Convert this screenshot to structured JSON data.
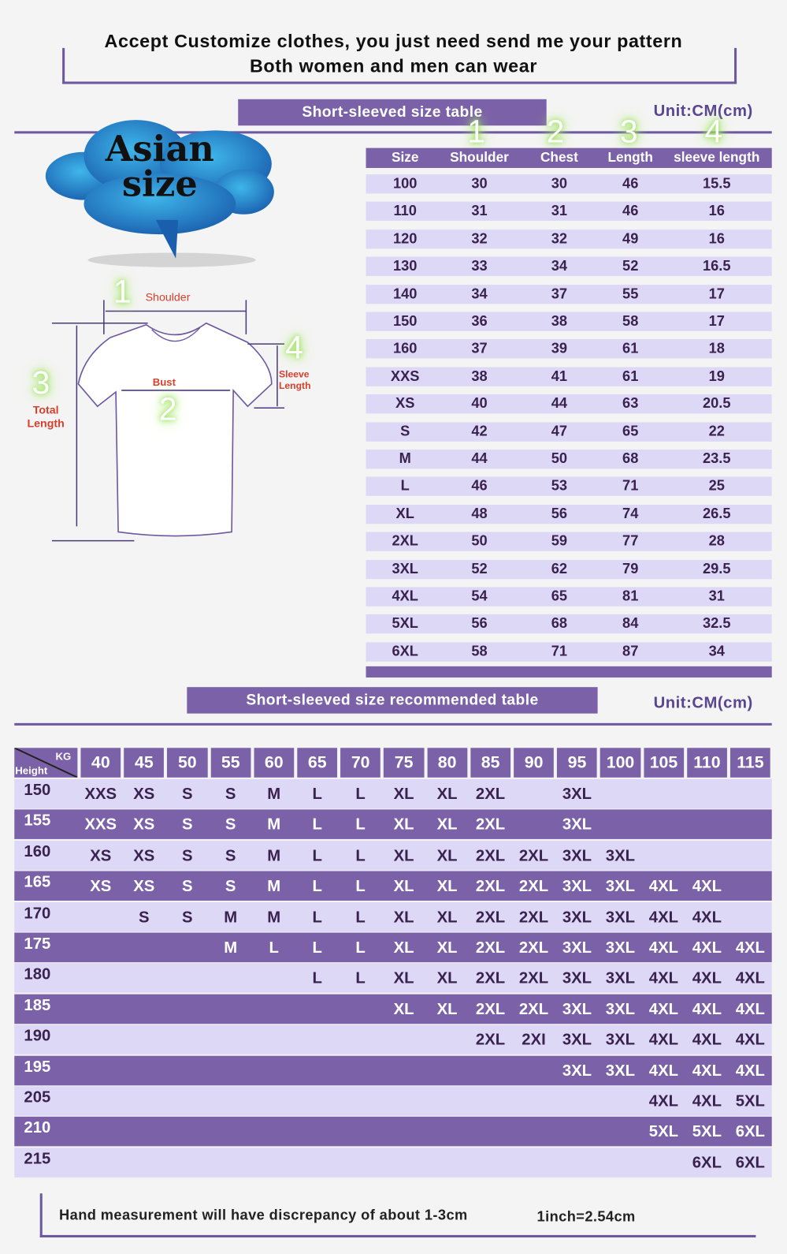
{
  "header": {
    "line1": "Accept Customize clothes, you just need send me your pattern",
    "line2": "Both women and men can wear"
  },
  "size_table": {
    "banner": "Short-sleeved size  table",
    "unit": "Unit:CM(cm)",
    "badge": "Asian size",
    "badge_line1": "Asian",
    "badge_line2": "size",
    "markers": [
      "1",
      "2",
      "3",
      "4"
    ],
    "columns": [
      "Size",
      "Shoulder",
      "Chest",
      "Length",
      "sleeve length"
    ],
    "rows": [
      [
        "100",
        "30",
        "30",
        "46",
        "15.5"
      ],
      [
        "110",
        "31",
        "31",
        "46",
        "16"
      ],
      [
        "120",
        "32",
        "32",
        "49",
        "16"
      ],
      [
        "130",
        "33",
        "34",
        "52",
        "16.5"
      ],
      [
        "140",
        "34",
        "37",
        "55",
        "17"
      ],
      [
        "150",
        "36",
        "38",
        "58",
        "17"
      ],
      [
        "160",
        "37",
        "39",
        "61",
        "18"
      ],
      [
        "XXS",
        "38",
        "41",
        "61",
        "19"
      ],
      [
        "XS",
        "40",
        "44",
        "63",
        "20.5"
      ],
      [
        "S",
        "42",
        "47",
        "65",
        "22"
      ],
      [
        "M",
        "44",
        "50",
        "68",
        "23.5"
      ],
      [
        "L",
        "46",
        "53",
        "71",
        "25"
      ],
      [
        "XL",
        "48",
        "56",
        "74",
        "26.5"
      ],
      [
        "2XL",
        "50",
        "59",
        "77",
        "28"
      ],
      [
        "3XL",
        "52",
        "62",
        "79",
        "29.5"
      ],
      [
        "4XL",
        "54",
        "65",
        "81",
        "31"
      ],
      [
        "5XL",
        "56",
        "68",
        "84",
        "32.5"
      ],
      [
        "6XL",
        "58",
        "71",
        "87",
        "34"
      ]
    ]
  },
  "diagram": {
    "shoulder": "Shoulder",
    "bust": "Bust",
    "sleeve_1": "Sleeve",
    "sleeve_2": "Length",
    "total_1": "Total",
    "total_2": "Length"
  },
  "recommend_table": {
    "banner": "Short-sleeved size recommended table",
    "unit": "Unit:CM(cm)",
    "corner_kg": "KG",
    "corner_height": "Height",
    "weights": [
      "40",
      "45",
      "50",
      "55",
      "60",
      "65",
      "70",
      "75",
      "80",
      "85",
      "90",
      "95",
      "100",
      "105",
      "110",
      "115"
    ],
    "rows": [
      {
        "height": "150",
        "sizes": [
          "XXS",
          "XS",
          "S",
          "S",
          "M",
          "L",
          "L",
          "XL",
          "XL",
          "2XL",
          "",
          "3XL",
          "",
          "",
          "",
          ""
        ]
      },
      {
        "height": "155",
        "sizes": [
          "XXS",
          "XS",
          "S",
          "S",
          "M",
          "L",
          "L",
          "XL",
          "XL",
          "2XL",
          "",
          "3XL",
          "",
          "",
          "",
          ""
        ]
      },
      {
        "height": "160",
        "sizes": [
          "XS",
          "XS",
          "S",
          "S",
          "M",
          "L",
          "L",
          "XL",
          "XL",
          "2XL",
          "2XL",
          "3XL",
          "3XL",
          "",
          "",
          ""
        ]
      },
      {
        "height": "165",
        "sizes": [
          "XS",
          "XS",
          "S",
          "S",
          "M",
          "L",
          "L",
          "XL",
          "XL",
          "2XL",
          "2XL",
          "3XL",
          "3XL",
          "4XL",
          "4XL",
          ""
        ]
      },
      {
        "height": "170",
        "sizes": [
          "",
          "S",
          "S",
          "M",
          "M",
          "L",
          "L",
          "XL",
          "XL",
          "2XL",
          "2XL",
          "3XL",
          "3XL",
          "4XL",
          "4XL",
          ""
        ]
      },
      {
        "height": "175",
        "sizes": [
          "",
          "",
          "",
          "M",
          "L",
          "L",
          "L",
          "XL",
          "XL",
          "2XL",
          "2XL",
          "3XL",
          "3XL",
          "4XL",
          "4XL",
          "4XL"
        ]
      },
      {
        "height": "180",
        "sizes": [
          "",
          "",
          "",
          "",
          "",
          "L",
          "L",
          "XL",
          "XL",
          "2XL",
          "2XL",
          "3XL",
          "3XL",
          "4XL",
          "4XL",
          "4XL"
        ]
      },
      {
        "height": "185",
        "sizes": [
          "",
          "",
          "",
          "",
          "",
          "",
          "",
          "XL",
          "XL",
          "2XL",
          "2XL",
          "3XL",
          "3XL",
          "4XL",
          "4XL",
          "4XL"
        ]
      },
      {
        "height": "190",
        "sizes": [
          "",
          "",
          "",
          "",
          "",
          "",
          "",
          "",
          "",
          "2XL",
          "2XI",
          "3XL",
          "3XL",
          "4XL",
          "4XL",
          "4XL"
        ]
      },
      {
        "height": "195",
        "sizes": [
          "",
          "",
          "",
          "",
          "",
          "",
          "",
          "",
          "",
          "",
          "",
          "3XL",
          "3XL",
          "4XL",
          "4XL",
          "4XL"
        ]
      },
      {
        "height": "205",
        "sizes": [
          "",
          "",
          "",
          "",
          "",
          "",
          "",
          "",
          "",
          "",
          "",
          "",
          "",
          "4XL",
          "4XL",
          "5XL"
        ]
      },
      {
        "height": "210",
        "sizes": [
          "",
          "",
          "",
          "",
          "",
          "",
          "",
          "",
          "",
          "",
          "",
          "",
          "",
          "5XL",
          "5XL",
          "6XL"
        ]
      },
      {
        "height": "215",
        "sizes": [
          "",
          "",
          "",
          "",
          "",
          "",
          "",
          "",
          "",
          "",
          "",
          "",
          "",
          "",
          "6XL",
          "6XL"
        ]
      }
    ]
  },
  "footer": {
    "note": "Hand measurement will have discrepancy of about  1-3cm",
    "conversion": "1inch=2.54cm"
  },
  "colors": {
    "purple": "#7b62a8",
    "light_row": "#ddd8f5",
    "dark_text": "#3a2250",
    "glow": "#9be05a",
    "label_red": "#d7402a",
    "cloud_blue": "#2a8fd0"
  }
}
